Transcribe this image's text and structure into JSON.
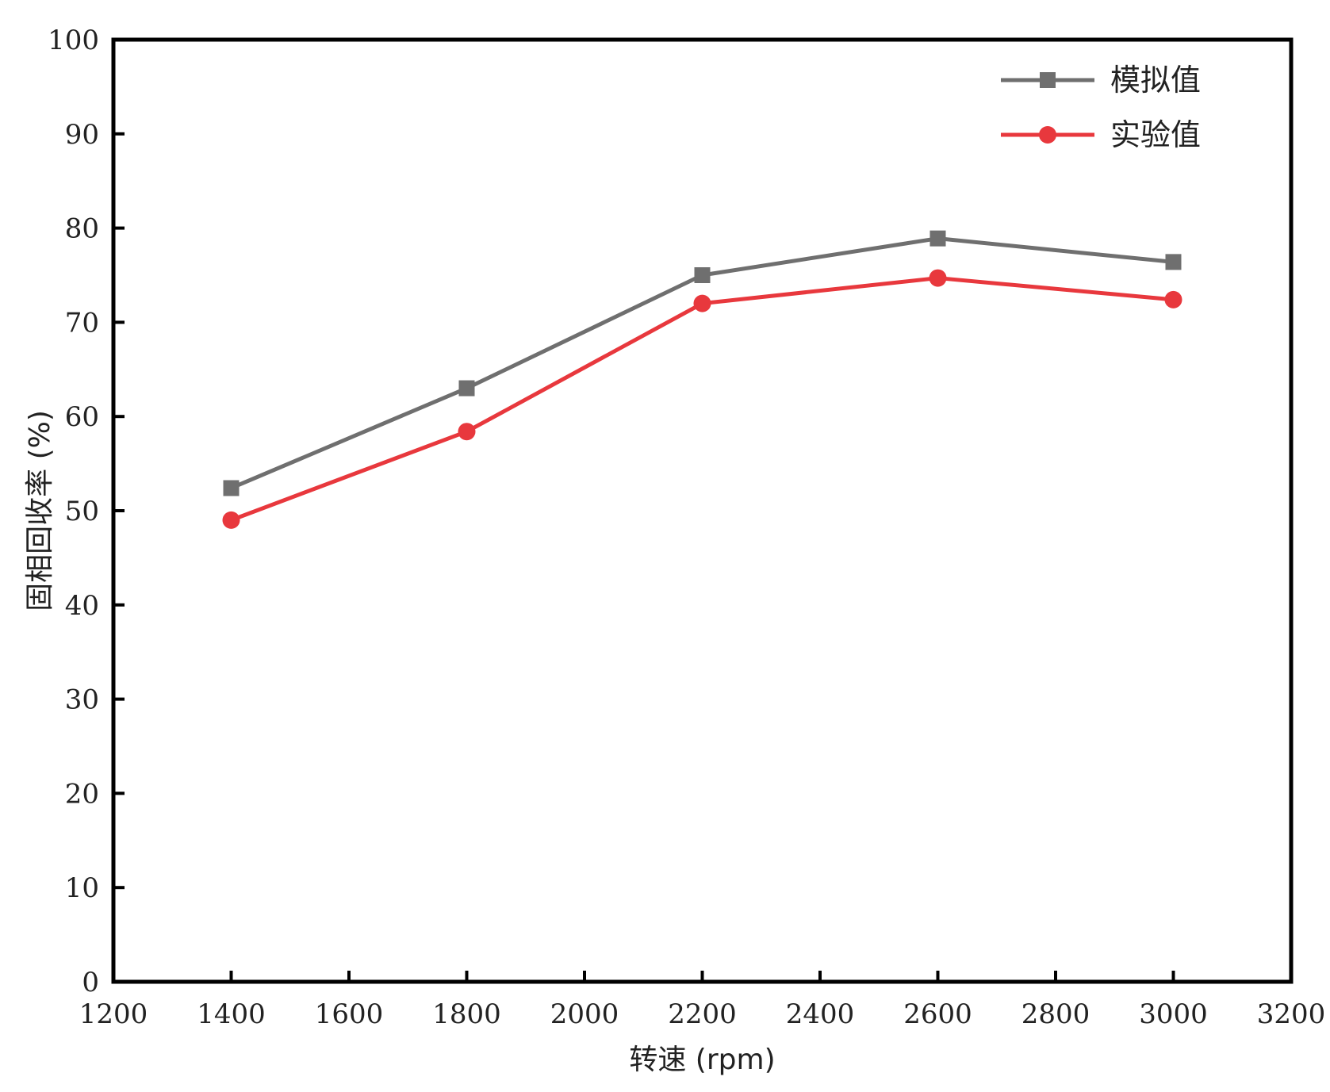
{
  "chart_data": {
    "type": "line",
    "title": "",
    "xlabel": "转速 (rpm)",
    "ylabel": "固相回收率 (%)",
    "xlim": [
      1200,
      3200
    ],
    "ylim": [
      0,
      100
    ],
    "x_ticks": [
      "1200",
      "1400",
      "1600",
      "1800",
      "2000",
      "2200",
      "2400",
      "2600",
      "2800",
      "3000",
      "3200"
    ],
    "y_ticks": [
      "0",
      "10",
      "20",
      "30",
      "40",
      "50",
      "60",
      "70",
      "80",
      "90",
      "100"
    ],
    "x": [
      1400,
      1800,
      2200,
      2600,
      3000
    ],
    "series": [
      {
        "name": "模拟值",
        "values": [
          52.4,
          63.0,
          75.0,
          78.9,
          76.4
        ],
        "color": "#6f6f6f",
        "marker": "square"
      },
      {
        "name": "实验值",
        "values": [
          49.0,
          58.4,
          72.0,
          74.7,
          72.4
        ],
        "color": "#e8383d",
        "marker": "circle"
      }
    ],
    "legend_position": "top-right",
    "grid": false
  }
}
